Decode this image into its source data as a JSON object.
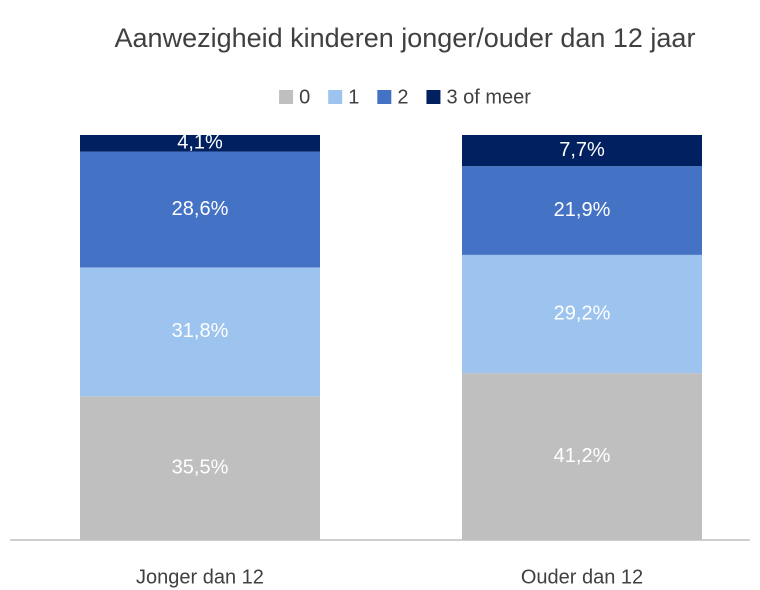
{
  "chart_data": {
    "type": "stacked_bar",
    "title": "Aanwezigheid kinderen jonger/ouder dan 12 jaar",
    "categories": [
      "Jonger dan 12",
      "Ouder dan 12"
    ],
    "series": [
      {
        "name": "0",
        "color": "#bfbfbf",
        "values": [
          35.5,
          41.2
        ],
        "value_labels": [
          "35,5%",
          "41,2%"
        ]
      },
      {
        "name": "1",
        "color": "#9dc3ef",
        "values": [
          31.8,
          29.2
        ],
        "value_labels": [
          "31,8%",
          "29,2%"
        ]
      },
      {
        "name": "2",
        "color": "#4472c4",
        "values": [
          28.6,
          21.9
        ],
        "value_labels": [
          "28,6%",
          "21,9%"
        ]
      },
      {
        "name": "3 of meer",
        "color": "#002060",
        "values": [
          4.1,
          7.7
        ],
        "value_labels": [
          "4,1%",
          "7,7%"
        ]
      }
    ]
  }
}
